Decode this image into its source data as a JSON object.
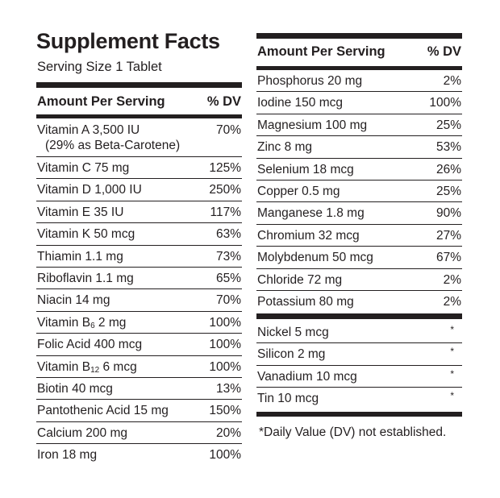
{
  "left": {
    "title": "Supplement Facts",
    "serving_size": "Serving Size 1 Tablet",
    "header": {
      "amount": "Amount Per Serving",
      "dv": "% DV"
    },
    "rows": [
      {
        "label": "Vitamin A 3,500 IU",
        "note": "(29% as Beta-Carotene)",
        "dv": "70%"
      },
      {
        "label": "Vitamin C 75 mg",
        "dv": "125%"
      },
      {
        "label": "Vitamin D 1,000 IU",
        "dv": "250%"
      },
      {
        "label": "Vitamin E 35 IU",
        "dv": "117%"
      },
      {
        "label": "Vitamin K 50 mcg",
        "dv": "63%"
      },
      {
        "label": "Thiamin 1.1 mg",
        "dv": "73%"
      },
      {
        "label": "Riboflavin 1.1 mg",
        "dv": "65%"
      },
      {
        "label": "Niacin 14 mg",
        "dv": "70%"
      },
      {
        "label": "Vitamin B",
        "sub": "6",
        "rest": " 2 mg",
        "dv": "100%"
      },
      {
        "label": "Folic Acid 400 mcg",
        "dv": "100%"
      },
      {
        "label": "Vitamin B",
        "sub": "12",
        "rest": " 6 mcg",
        "dv": "100%"
      },
      {
        "label": "Biotin 40 mcg",
        "dv": "13%"
      },
      {
        "label": "Pantothenic Acid 15 mg",
        "dv": "150%"
      },
      {
        "label": "Calcium 200 mg",
        "dv": "20%"
      },
      {
        "label": "Iron 18 mg",
        "dv": "100%"
      }
    ]
  },
  "right": {
    "header": {
      "amount": "Amount Per Serving",
      "dv": "% DV"
    },
    "rows": [
      {
        "label": "Phosphorus 20 mg",
        "dv": "2%"
      },
      {
        "label": "Iodine 150 mcg",
        "dv": "100%"
      },
      {
        "label": "Magnesium 100 mg",
        "dv": "25%"
      },
      {
        "label": "Zinc 8 mg",
        "dv": "53%"
      },
      {
        "label": "Selenium 18 mcg",
        "dv": "26%"
      },
      {
        "label": "Copper 0.5 mg",
        "dv": "25%"
      },
      {
        "label": "Manganese 1.8 mg",
        "dv": "90%"
      },
      {
        "label": "Chromium 32 mcg",
        "dv": "27%"
      },
      {
        "label": "Molybdenum 50 mcg",
        "dv": "67%"
      },
      {
        "label": "Chloride 72 mg",
        "dv": "2%"
      },
      {
        "label": "Potassium 80 mg",
        "dv": "2%"
      }
    ],
    "no_dv_rows": [
      {
        "label": "Nickel 5 mcg",
        "dv": "*"
      },
      {
        "label": "Silicon 2 mg",
        "dv": "*"
      },
      {
        "label": "Vanadium 10 mcg",
        "dv": "*"
      },
      {
        "label": "Tin 10 mcg",
        "dv": "*"
      }
    ],
    "footnote": "*Daily Value (DV) not established."
  }
}
